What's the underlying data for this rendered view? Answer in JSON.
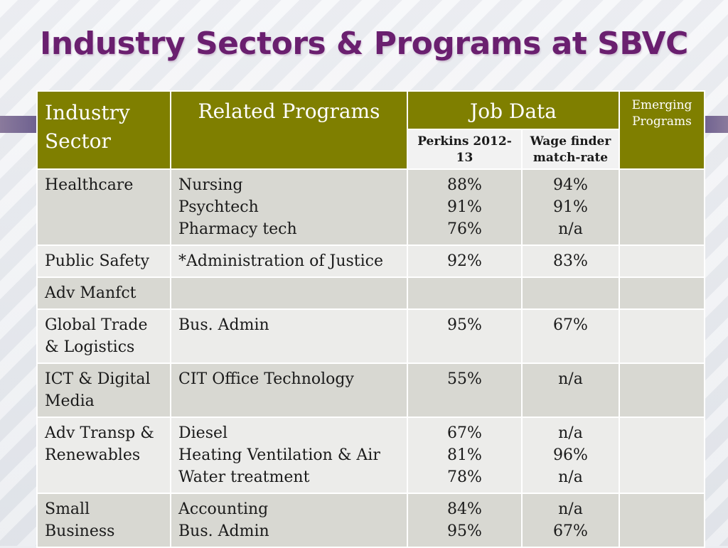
{
  "slide": {
    "title": "Industry Sectors & Programs at SBVC"
  },
  "table": {
    "headers": {
      "industry_sector": "Industry Sector",
      "related_programs": "Related Programs",
      "job_data": "Job Data",
      "perkins": "Perkins 2012-13",
      "wage_finder": "Wage finder match-rate",
      "emerging_programs": "Emerging Programs"
    },
    "rows": [
      {
        "sector": "Healthcare",
        "programs": [
          "Nursing",
          "Psychtech",
          "Pharmacy tech"
        ],
        "perkins": [
          "88%",
          "91%",
          "76%"
        ],
        "wage": [
          "94%",
          "91%",
          "n/a"
        ],
        "emerging": ""
      },
      {
        "sector": "Public Safety",
        "programs": [
          "*Administration of Justice"
        ],
        "perkins": [
          "92%"
        ],
        "wage": [
          "83%"
        ],
        "emerging": ""
      },
      {
        "sector": "Adv Manfct",
        "programs": [],
        "perkins": [],
        "wage": [],
        "emerging": ""
      },
      {
        "sector": "Global Trade & Logistics",
        "programs": [
          "Bus. Admin"
        ],
        "perkins": [
          "95%"
        ],
        "wage": [
          "67%"
        ],
        "emerging": ""
      },
      {
        "sector": "ICT & Digital Media",
        "programs": [
          "CIT Office Technology"
        ],
        "perkins": [
          "55%"
        ],
        "wage": [
          "n/a"
        ],
        "emerging": ""
      },
      {
        "sector": "Adv Transp & Renewables",
        "programs": [
          "Diesel",
          "Heating Ventilation & Air",
          "Water treatment"
        ],
        "perkins": [
          "67%",
          "81%",
          "78%"
        ],
        "wage": [
          "n/a",
          "96%",
          "n/a"
        ],
        "emerging": ""
      },
      {
        "sector": "Small Business",
        "programs": [
          "Accounting",
          "Bus. Admin"
        ],
        "perkins": [
          "84%",
          "95%"
        ],
        "wage": [
          "n/a",
          "67%"
        ],
        "emerging": ""
      }
    ]
  },
  "colors": {
    "header_bg": "#7f7f00",
    "title": "#6a1f6f",
    "row_dark": "#d8d8d2",
    "row_light": "#ececea"
  }
}
